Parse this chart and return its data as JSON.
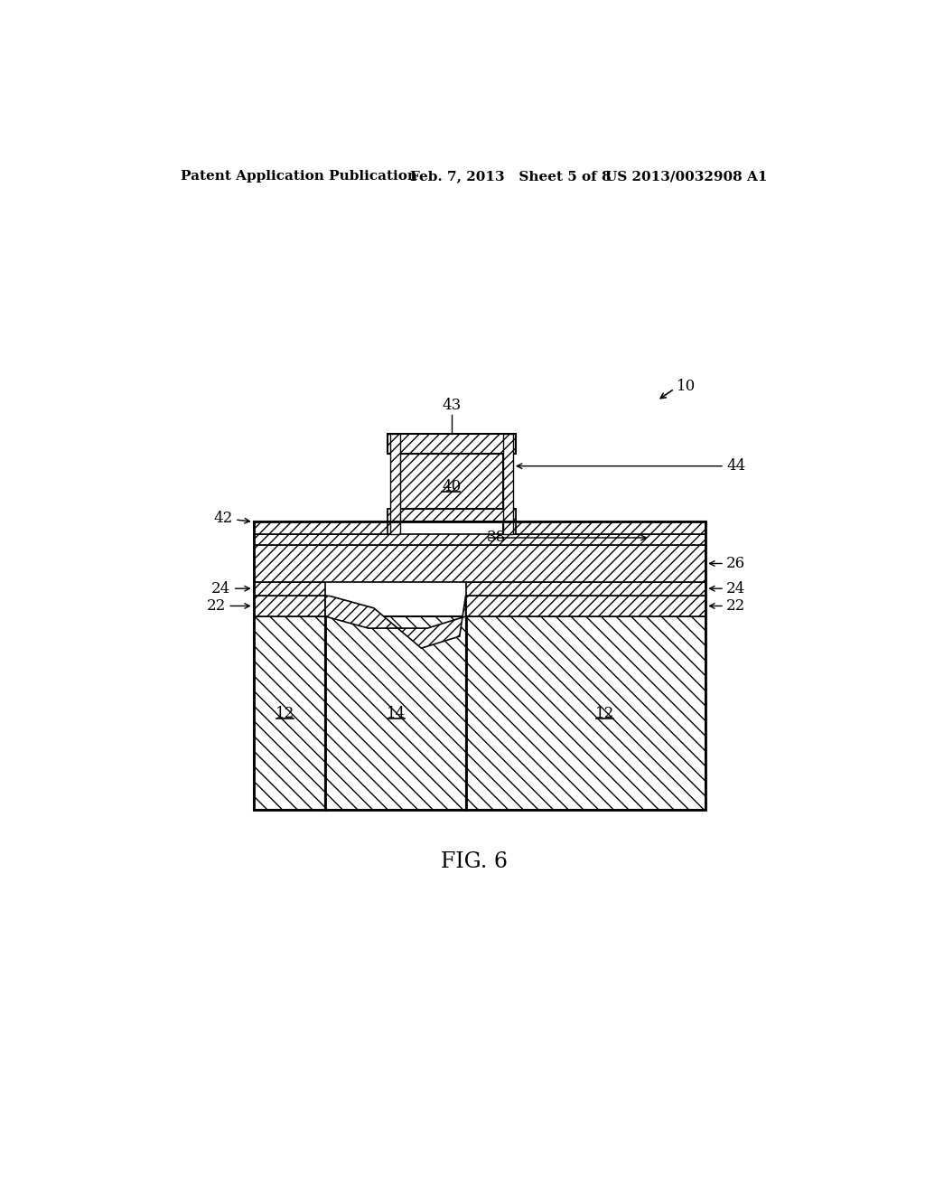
{
  "patent_header_left": "Patent Application Publication",
  "patent_header_center": "Feb. 7, 2013   Sheet 5 of 8",
  "patent_header_right": "US 2013/0032908 A1",
  "fig_label": "FIG. 6",
  "ref_10": "10",
  "ref_12": "12",
  "ref_14": "14",
  "ref_22": "22",
  "ref_24": "24",
  "ref_26": "26",
  "ref_38": "38",
  "ref_40": "40",
  "ref_42": "42",
  "ref_43": "43",
  "ref_44": "44",
  "bg_color": "#ffffff"
}
